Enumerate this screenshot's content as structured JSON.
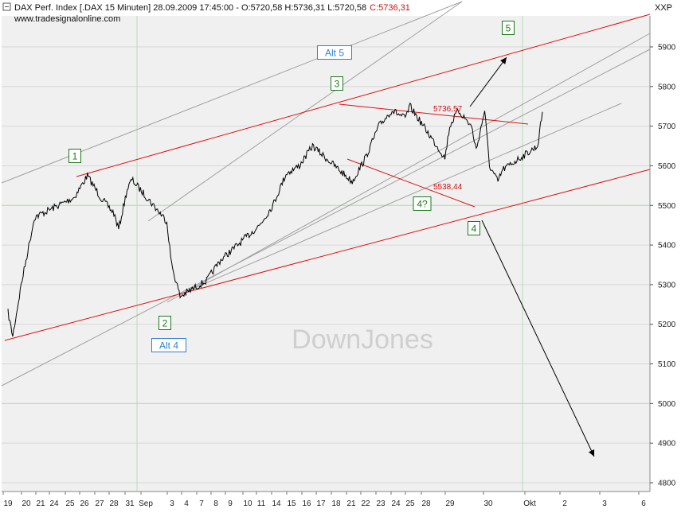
{
  "header": {
    "title": "DAX Perf. Index [.DAX  15 Minuten] 28.09.2009 17:45:00 - O:5720,58 H:5736,31 L:5720,58",
    "close": "C:5736,31",
    "source": "www.tradesignalonline.com",
    "unit": "XXP"
  },
  "watermark": "DownJones",
  "colors": {
    "price": "#000000",
    "channel": "#dd1111",
    "trend_lines": "#a0a0a0",
    "grid_light": "#d8d8d8",
    "grid_vertical": "#b8dcb8",
    "wave_green": "#1b7a1b",
    "wave_blue": "#2f7fd6",
    "plot_bg": "#f0f0f0"
  },
  "chart_data": {
    "type": "line",
    "title": "DAX Perf. Index [.DAX  15 Minuten]",
    "ylim": [
      4780,
      5960
    ],
    "y_ticks": [
      4800,
      4900,
      5000,
      5100,
      5200,
      5300,
      5400,
      5500,
      5600,
      5700,
      5800,
      5900
    ],
    "x_ticks": [
      "19",
      "20",
      "21",
      "24",
      "25",
      "26",
      "27",
      "28",
      "31",
      "Sep",
      "3",
      "4",
      "7",
      "8",
      "9",
      "10",
      "11",
      "14",
      "15",
      "16",
      "17",
      "18",
      "21",
      "22",
      "23",
      "24",
      "25",
      "28",
      "29",
      "30",
      "Okt",
      "2",
      "3",
      "6"
    ],
    "grid": true,
    "series": [
      {
        "approx_path": [
          [
            "2009-08-19",
            5230
          ],
          [
            "2009-08-19",
            5170
          ],
          [
            "2009-08-20",
            5300
          ],
          [
            "2009-08-21",
            5470
          ],
          [
            "2009-08-24",
            5520
          ],
          [
            "2009-08-25",
            5575
          ],
          [
            "2009-08-26",
            5520
          ],
          [
            "2009-08-27",
            5480
          ],
          [
            "2009-08-27",
            5440
          ],
          [
            "2009-08-28",
            5540
          ],
          [
            "2009-08-28",
            5565
          ],
          [
            "2009-08-31",
            5460
          ],
          [
            "2009-08-31",
            5350
          ],
          [
            "2009-09-01",
            5270
          ],
          [
            "2009-09-02",
            5290
          ],
          [
            "2009-09-03",
            5310
          ],
          [
            "2009-09-04",
            5360
          ],
          [
            "2009-09-07",
            5450
          ],
          [
            "2009-09-08",
            5500
          ],
          [
            "2009-09-09",
            5580
          ],
          [
            "2009-09-10",
            5600
          ],
          [
            "2009-09-11",
            5650
          ],
          [
            "2009-09-14",
            5560
          ],
          [
            "2009-09-15",
            5620
          ],
          [
            "2009-09-16",
            5700
          ],
          [
            "2009-09-17",
            5740
          ],
          [
            "2009-09-18",
            5720
          ],
          [
            "2009-09-18",
            5750
          ],
          [
            "2009-09-21",
            5620
          ],
          [
            "2009-09-21",
            5700
          ],
          [
            "2009-09-22",
            5740
          ],
          [
            "2009-09-23",
            5700
          ],
          [
            "2009-09-23",
            5640
          ],
          [
            "2009-09-24",
            5740
          ],
          [
            "2009-09-24",
            5600
          ],
          [
            "2009-09-25",
            5560
          ],
          [
            "2009-09-25",
            5590
          ],
          [
            "2009-09-28",
            5650
          ],
          [
            "2009-09-28",
            5736
          ]
        ]
      }
    ],
    "annotations": [
      {
        "text": "1",
        "style": "wave-green"
      },
      {
        "text": "2",
        "style": "wave-green"
      },
      {
        "text": "3",
        "style": "wave-green"
      },
      {
        "text": "4?",
        "style": "wave-green"
      },
      {
        "text": "4",
        "style": "wave-green"
      },
      {
        "text": "5",
        "style": "wave-green"
      },
      {
        "text": "Alt 4",
        "style": "wave-blue"
      },
      {
        "text": "Alt 5",
        "style": "wave-blue"
      },
      {
        "text": "5736,57",
        "style": "price"
      },
      {
        "text": "5538,44",
        "style": "price"
      }
    ]
  }
}
